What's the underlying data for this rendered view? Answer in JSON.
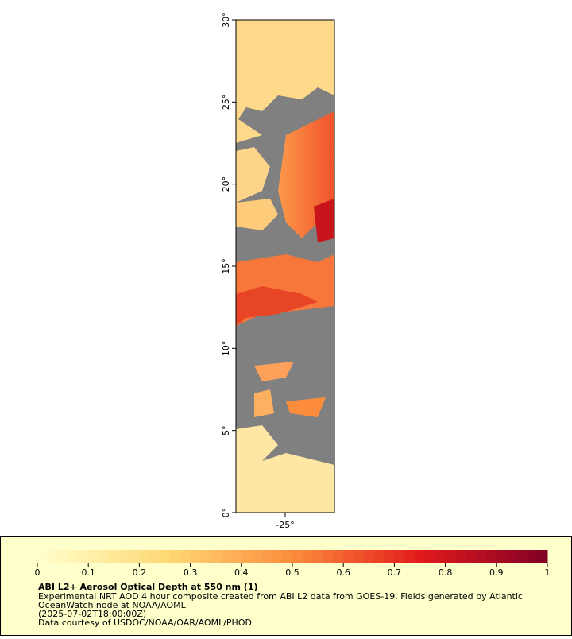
{
  "map": {
    "xlim": [
      -28,
      -22
    ],
    "ylim": [
      0,
      30
    ],
    "xticks": [
      {
        "value": -25,
        "label": "-25°"
      }
    ],
    "yticks": [
      {
        "value": 0,
        "label": "0°"
      },
      {
        "value": 5,
        "label": "5°"
      },
      {
        "value": 10,
        "label": "10°"
      },
      {
        "value": 15,
        "label": "15°"
      },
      {
        "value": 20,
        "label": "20°"
      },
      {
        "value": 25,
        "label": "25°"
      },
      {
        "value": 30,
        "label": "30°"
      }
    ],
    "colorbar": {
      "clim": [
        0,
        1
      ],
      "ticks": [
        0,
        0.1,
        0.2,
        0.3,
        0.4,
        0.5,
        0.6,
        0.7,
        0.8,
        0.9,
        1
      ],
      "colors": [
        "#ffffcc",
        "#fed976",
        "#fd8d3c",
        "#e31a1c",
        "#800026"
      ]
    },
    "title": "ABI L2+ Aerosol Optical Depth at 550 nm (1)",
    "notes": [
      "Experimental NRT AOD 4 hour composite created from ABI L2 data from GOES-19. Fields generated by Atlantic",
      "OceanWatch node at NOAA/AOML",
      "(2025-07-02T18:00:00Z)",
      "Data courtesy of USDOC/NOAA/OAR/AOML/PHOD"
    ]
  }
}
